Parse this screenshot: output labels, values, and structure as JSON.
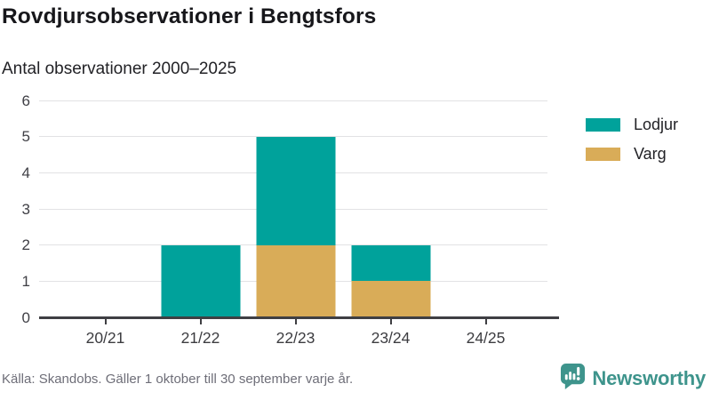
{
  "header": {
    "title": "Rovdjursobservationer i Bengtsfors",
    "subtitle": "Antal observationer 2000–2025"
  },
  "chart_data": {
    "type": "bar",
    "stacked": true,
    "title": "Rovdjursobservationer i Bengtsfors",
    "subtitle": "Antal observationer 2000–2025",
    "xlabel": "",
    "ylabel": "",
    "categories": [
      "20/21",
      "21/22",
      "22/23",
      "23/24",
      "24/25"
    ],
    "series": [
      {
        "name": "Varg",
        "color": "#D9AC58",
        "values": [
          0,
          0,
          2,
          1,
          0
        ]
      },
      {
        "name": "Lodjur",
        "color": "#00A29B",
        "values": [
          0,
          2,
          3,
          1,
          0
        ]
      }
    ],
    "totals": [
      0,
      2,
      5,
      2,
      0
    ],
    "ylim": [
      0,
      6
    ],
    "yticks": [
      0,
      1,
      2,
      3,
      4,
      5,
      6
    ],
    "grid": true,
    "legend_position": "right"
  },
  "legend": {
    "items": [
      {
        "label": "Lodjur",
        "color": "#00A29B"
      },
      {
        "label": "Varg",
        "color": "#D9AC58"
      }
    ]
  },
  "footer": {
    "source": "Källa: Skandobs. Gäller 1 oktober till 30 september varje år.",
    "brand": "Newsworthy"
  },
  "colors": {
    "lodjur": "#00A29B",
    "varg": "#D9AC58",
    "brand_teal": "#3E948C",
    "axis": "#3F3F43",
    "gridline": "#E2E2E4",
    "footer_text": "#6E6E78"
  }
}
